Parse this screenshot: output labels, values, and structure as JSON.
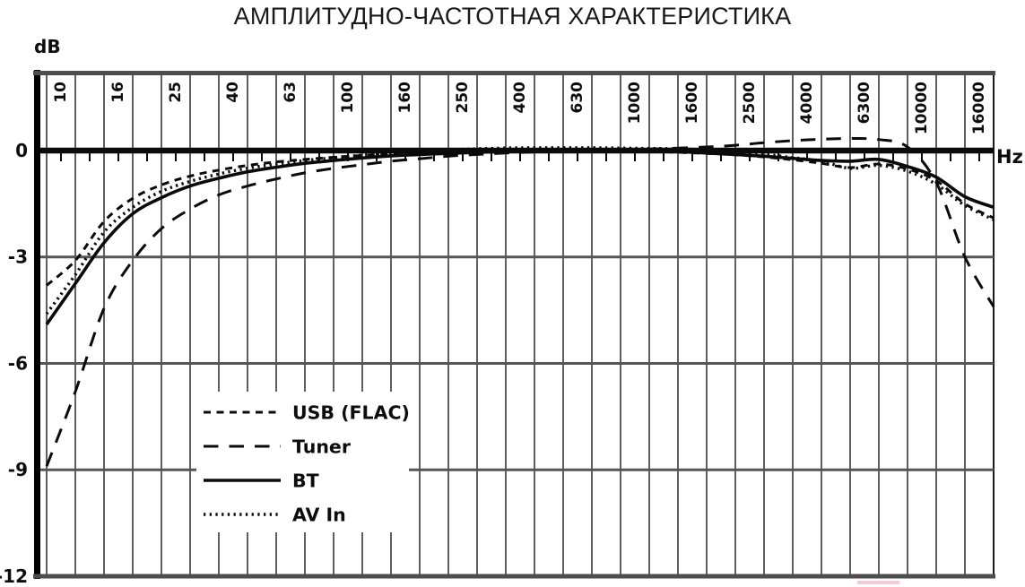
{
  "title": "АМПЛИТУДНО-ЧАСТОТНАЯ ХАРАКТЕРИСТИКА",
  "y_axis_unit": "dB",
  "x_axis_unit": "Hz",
  "colors": {
    "curve": "#0a0a0a",
    "grid_line": "#1c1c1c",
    "gray_axis": "#4d4d4d",
    "gray_gridline": "#565656",
    "background": "#ffffff",
    "watermark_pink": "#f2ccd3"
  },
  "chart_data": {
    "type": "line",
    "title": "АМПЛИТУДНО-ЧАСТОТНАЯ ХАРАКТЕРИСТИКА",
    "xlabel": "Hz",
    "ylabel": "dB",
    "x_scale": "log-third-octave",
    "grid": true,
    "legend_position": "lower-left",
    "ylim": [
      -12,
      0.8
    ],
    "y_ticks": [
      0,
      -3,
      -6,
      -9,
      -12
    ],
    "x_tick_labels": [
      "10",
      "16",
      "25",
      "40",
      "63",
      "100",
      "160",
      "250",
      "400",
      "630",
      "1000",
      "1600",
      "2500",
      "4000",
      "6300",
      "10000",
      "16000"
    ],
    "frequencies": [
      10,
      12.5,
      16,
      20,
      25,
      31.5,
      40,
      50,
      63,
      80,
      100,
      125,
      160,
      200,
      250,
      315,
      400,
      500,
      630,
      800,
      1000,
      1250,
      1600,
      2000,
      2500,
      3150,
      4000,
      5000,
      6300,
      8000,
      10000,
      12500,
      16000,
      20000
    ],
    "series": [
      {
        "name": "USB (FLAC)",
        "line_style": "dashed-short",
        "values": [
          -3.8,
          -3.1,
          -2.0,
          -1.35,
          -0.97,
          -0.72,
          -0.55,
          -0.42,
          -0.32,
          -0.25,
          -0.19,
          -0.14,
          -0.1,
          -0.07,
          -0.05,
          -0.03,
          -0.02,
          -0.01,
          0.0,
          0.0,
          0.0,
          -0.02,
          -0.05,
          -0.08,
          -0.12,
          -0.18,
          -0.26,
          -0.36,
          -0.48,
          -0.38,
          -0.52,
          -0.85,
          -1.5,
          -1.9
        ]
      },
      {
        "name": "Tuner",
        "line_style": "dashed-long",
        "values": [
          -8.9,
          -6.8,
          -4.45,
          -3.1,
          -2.2,
          -1.65,
          -1.25,
          -1.0,
          -0.8,
          -0.63,
          -0.5,
          -0.4,
          -0.3,
          -0.23,
          -0.16,
          -0.11,
          -0.07,
          -0.04,
          -0.02,
          0.0,
          0.02,
          0.04,
          0.07,
          0.1,
          0.15,
          0.22,
          0.28,
          0.32,
          0.34,
          0.31,
          0.1,
          -0.9,
          -3.0,
          -4.4
        ]
      },
      {
        "name": "BT",
        "line_style": "solid",
        "values": [
          -4.9,
          -3.75,
          -2.6,
          -1.78,
          -1.33,
          -1.0,
          -0.78,
          -0.6,
          -0.47,
          -0.36,
          -0.28,
          -0.21,
          -0.15,
          -0.11,
          -0.08,
          -0.05,
          -0.03,
          -0.02,
          -0.01,
          0.0,
          0.0,
          -0.01,
          -0.03,
          -0.07,
          -0.11,
          -0.16,
          -0.22,
          -0.28,
          -0.3,
          -0.25,
          -0.45,
          -0.75,
          -1.3,
          -1.6
        ]
      },
      {
        "name": "AV In",
        "line_style": "dotted",
        "values": [
          -4.6,
          -3.5,
          -2.3,
          -1.6,
          -1.15,
          -0.87,
          -0.66,
          -0.5,
          -0.38,
          -0.28,
          -0.2,
          -0.13,
          -0.07,
          -0.02,
          0.02,
          0.05,
          0.07,
          0.08,
          0.08,
          0.08,
          0.07,
          0.06,
          0.05,
          0.02,
          -0.02,
          -0.1,
          -0.2,
          -0.3,
          -0.5,
          -0.42,
          -0.58,
          -0.95,
          -1.55,
          -1.95
        ]
      }
    ]
  }
}
